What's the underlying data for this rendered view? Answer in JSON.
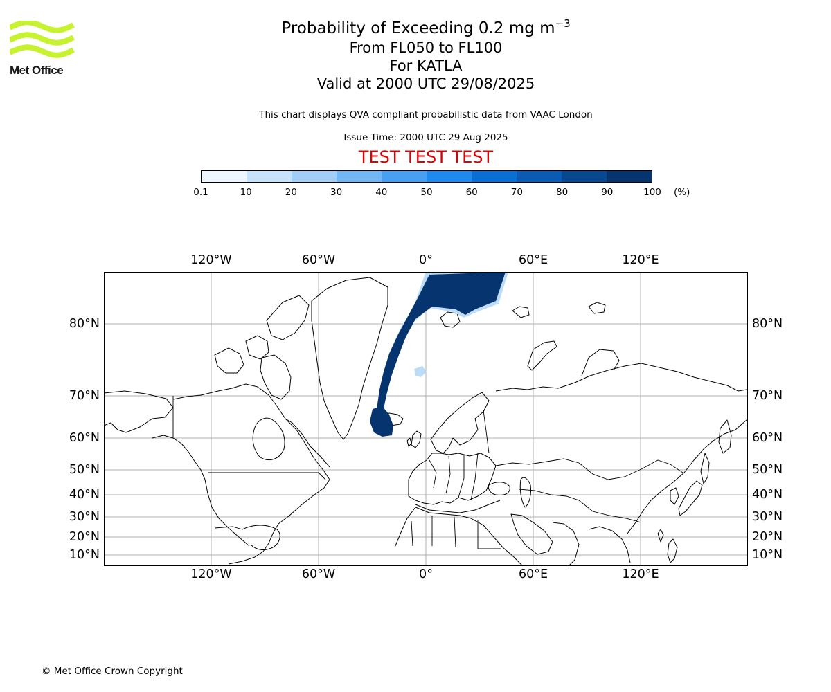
{
  "logo": {
    "text": "Met Office",
    "color": "#c6f22f"
  },
  "title": {
    "main": "Probability of Exceeding 0.2 mg m",
    "main_exp": "−3",
    "line2": "From FL050 to FL100",
    "line3": "For KATLA",
    "line4": "Valid at 2000 UTC 29/08/2025"
  },
  "notes": {
    "description": "This chart displays QVA compliant probabilistic data from VAAC London",
    "issue_time": "Issue Time: 2000 UTC 29 Aug 2025"
  },
  "test_banner": {
    "text": "TEST TEST TEST",
    "color": "#e00000"
  },
  "colorbar": {
    "ticks": [
      "0.1",
      "10",
      "20",
      "30",
      "40",
      "50",
      "60",
      "70",
      "80",
      "90",
      "100"
    ],
    "unit": "(%)",
    "colors": [
      "#eef6ff",
      "#c7e2fb",
      "#a1cdf7",
      "#73b6f4",
      "#47a0f1",
      "#1f8aee",
      "#0a6fd4",
      "#0a5bb3",
      "#084891",
      "#06346e"
    ]
  },
  "map": {
    "lon_labels": [
      "120°W",
      "60°W",
      "0°",
      "60°E",
      "120°E"
    ],
    "lat_labels": [
      "80°N",
      "70°N",
      "60°N",
      "50°N",
      "40°N",
      "30°N",
      "20°N",
      "10°N"
    ]
  },
  "footer": {
    "copyright": "© Met Office Crown Copyright"
  }
}
